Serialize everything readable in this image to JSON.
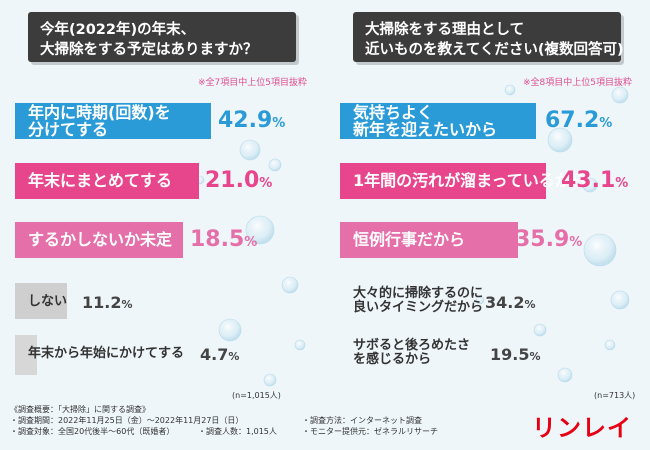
{
  "colors": {
    "blue": "#2b9bd7",
    "pink": "#e8468c",
    "lightpink": "#e56fa9",
    "gray": "#cfcfcf",
    "logo": "#e60012"
  },
  "chart_data": [
    {
      "type": "bar",
      "orientation": "horizontal",
      "title_lines": [
        "今年(2022年)の年末、",
        "大掃除をする予定はありますか？"
      ],
      "note": "※全7項目中上位5項目抜粋",
      "categories": [
        "年内に時期(回数)を分けてする",
        "年末にまとめてする",
        "するかしないか未定",
        "しない",
        "年末から年始にかけてする"
      ],
      "label_lines": [
        [
          "年内に時期(回数)を",
          "分けてする"
        ],
        [
          "年末にまとめてする"
        ],
        [
          "するかしないか未定"
        ],
        [
          "しない"
        ],
        [
          "年末から年始にかけてする"
        ]
      ],
      "values": [
        42.9,
        21.0,
        18.5,
        11.2,
        4.7
      ],
      "value_labels": [
        "42.9",
        "21.0",
        "18.5",
        "11.2",
        "4.7"
      ],
      "unit": "%",
      "xlim": [
        0,
        50
      ],
      "n_label": "(n=1,015人)"
    },
    {
      "type": "bar",
      "orientation": "horizontal",
      "title_lines": [
        "大掃除をする理由として",
        "近いものを教えてください(複数回答可)"
      ],
      "note": "※全8項目中上位5項目抜粋",
      "categories": [
        "気持ちよく新年を迎えたいから",
        "1年間の汚れが溜まっているから",
        "恒例行事だから",
        "大々的に掃除するのに良いタイミングだから",
        "サボると後ろめたさを感じるから"
      ],
      "label_lines": [
        [
          "気持ちよく",
          "新年を迎えたいから"
        ],
        [
          "1年間の汚れが溜まっているから"
        ],
        [
          "恒例行事だから"
        ],
        [
          "大々的に掃除するのに",
          "良いタイミングだから"
        ],
        [
          "サボると後ろめたさ",
          "を感じるから"
        ]
      ],
      "values": [
        67.2,
        43.1,
        35.9,
        34.2,
        19.5
      ],
      "value_labels": [
        "67.2",
        "43.1",
        "35.9",
        "34.2",
        "19.5"
      ],
      "unit": "%",
      "xlim": [
        0,
        78
      ],
      "n_label": "(n=713人)"
    }
  ],
  "footer": {
    "line1": "《調査概要：「大掃除」に関する調査》",
    "line2a": "・調査期間：2022年11月25日（金）～2022年11月27日（日）",
    "line2b": "・調査方法：インターネット調査",
    "line3a": "・調査対象：全国20代後半～60代（既婚者）",
    "line3m": "・調査人数：1,015人",
    "line3b": "・モニター提供元：ゼネラルリサーチ"
  },
  "logo": "リンレイ"
}
